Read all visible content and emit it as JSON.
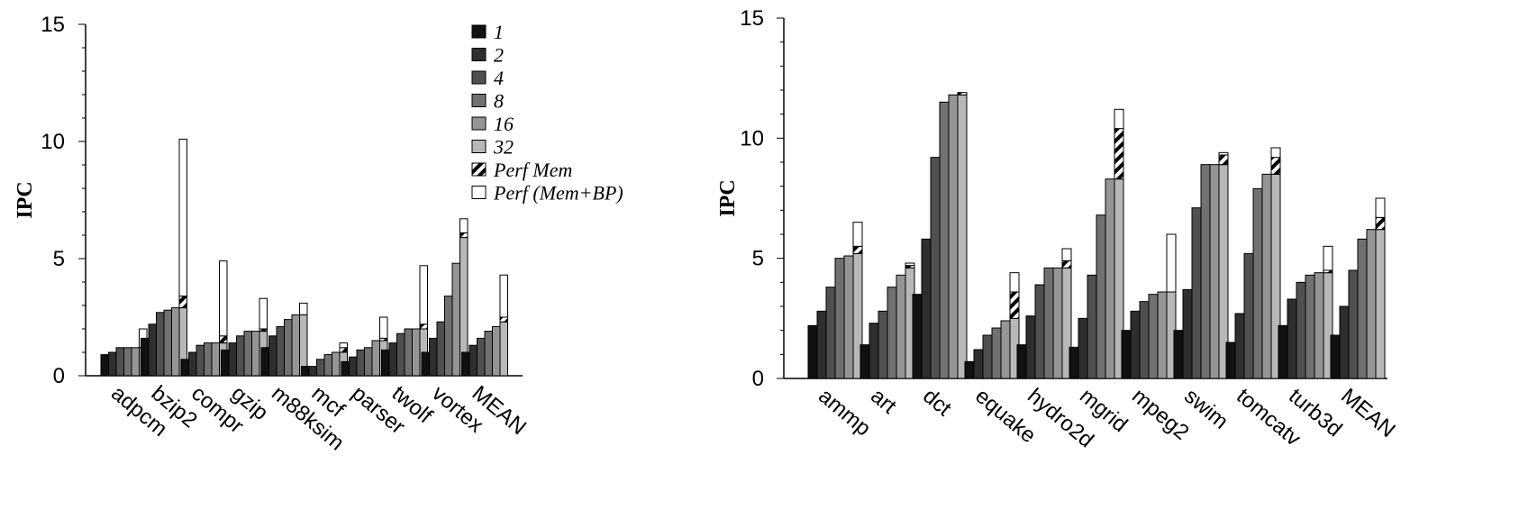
{
  "chart_data": [
    {
      "type": "bar",
      "title": "",
      "xlabel": "",
      "ylabel": "IPC",
      "ylim": [
        0,
        15
      ],
      "yticks": [
        0,
        5,
        10,
        15
      ],
      "legend_position": "top-right",
      "categories": [
        "adpcm",
        "bzip2",
        "compr",
        "gzip",
        "m88ksim",
        "mcf",
        "parser",
        "twolf",
        "vortex",
        "MEAN"
      ],
      "series": [
        {
          "name": "1",
          "color": "#111111",
          "values": [
            0.9,
            1.6,
            0.7,
            1.1,
            1.2,
            0.4,
            0.6,
            1.1,
            1.0,
            1.0
          ]
        },
        {
          "name": "2",
          "color": "#2e2e2e",
          "values": [
            1.0,
            2.2,
            1.0,
            1.4,
            1.7,
            0.4,
            0.8,
            1.4,
            1.6,
            1.3
          ]
        },
        {
          "name": "4",
          "color": "#505050",
          "values": [
            1.2,
            2.7,
            1.3,
            1.7,
            2.1,
            0.7,
            1.1,
            1.8,
            2.3,
            1.6
          ]
        },
        {
          "name": "8",
          "color": "#717171",
          "values": [
            1.2,
            2.8,
            1.4,
            1.9,
            2.4,
            0.9,
            1.2,
            2.0,
            3.4,
            1.9
          ]
        },
        {
          "name": "16",
          "color": "#959595",
          "values": [
            1.2,
            2.9,
            1.4,
            1.9,
            2.6,
            1.0,
            1.5,
            2.0,
            4.8,
            2.1
          ]
        },
        {
          "name": "32",
          "color": "#b8b8b8",
          "values": [
            1.2,
            2.9,
            1.4,
            1.9,
            2.6,
            1.0,
            1.5,
            2.0,
            5.9,
            2.3
          ]
        },
        {
          "name": "Perf Mem",
          "color": "hatched",
          "values": [
            1.2,
            3.4,
            1.7,
            2.0,
            2.6,
            1.2,
            1.6,
            2.2,
            6.1,
            2.5
          ]
        },
        {
          "name": "Perf (Mem+BP)",
          "color": "#ffffff",
          "values": [
            2.0,
            10.1,
            4.9,
            3.3,
            3.1,
            1.4,
            2.5,
            4.7,
            6.7,
            4.3
          ]
        }
      ]
    },
    {
      "type": "bar",
      "title": "",
      "xlabel": "",
      "ylabel": "IPC",
      "ylim": [
        0,
        15
      ],
      "yticks": [
        0,
        5,
        10,
        15
      ],
      "categories": [
        "ammp",
        "art",
        "dct",
        "equake",
        "hydro2d",
        "mgrid",
        "mpeg2",
        "swim",
        "tomcatv",
        "turb3d",
        "MEAN"
      ],
      "series": [
        {
          "name": "1",
          "values": [
            2.2,
            1.4,
            3.5,
            0.7,
            1.4,
            1.3,
            2.0,
            2.0,
            1.5,
            2.2,
            1.8
          ]
        },
        {
          "name": "2",
          "values": [
            2.8,
            2.3,
            5.8,
            1.2,
            2.6,
            2.5,
            2.8,
            3.7,
            2.7,
            3.3,
            3.0
          ]
        },
        {
          "name": "4",
          "values": [
            3.8,
            2.8,
            9.2,
            1.8,
            3.9,
            4.3,
            3.2,
            7.1,
            5.2,
            4.0,
            4.5
          ]
        },
        {
          "name": "8",
          "values": [
            5.0,
            3.8,
            11.5,
            2.1,
            4.6,
            6.8,
            3.5,
            8.9,
            7.9,
            4.3,
            5.8
          ]
        },
        {
          "name": "16",
          "values": [
            5.1,
            4.3,
            11.8,
            2.4,
            4.6,
            8.3,
            3.6,
            8.9,
            8.5,
            4.4,
            6.2
          ]
        },
        {
          "name": "32",
          "values": [
            5.2,
            4.6,
            11.8,
            2.5,
            4.6,
            8.3,
            3.6,
            8.9,
            8.5,
            4.4,
            6.2
          ]
        },
        {
          "name": "Perf Mem",
          "values": [
            5.5,
            4.7,
            11.9,
            3.6,
            4.9,
            10.4,
            3.6,
            9.3,
            9.2,
            4.5,
            6.7
          ]
        },
        {
          "name": "Perf (Mem+BP)",
          "values": [
            6.5,
            4.8,
            11.9,
            4.4,
            5.4,
            11.2,
            6.0,
            9.4,
            9.6,
            5.5,
            7.5
          ]
        }
      ]
    }
  ]
}
